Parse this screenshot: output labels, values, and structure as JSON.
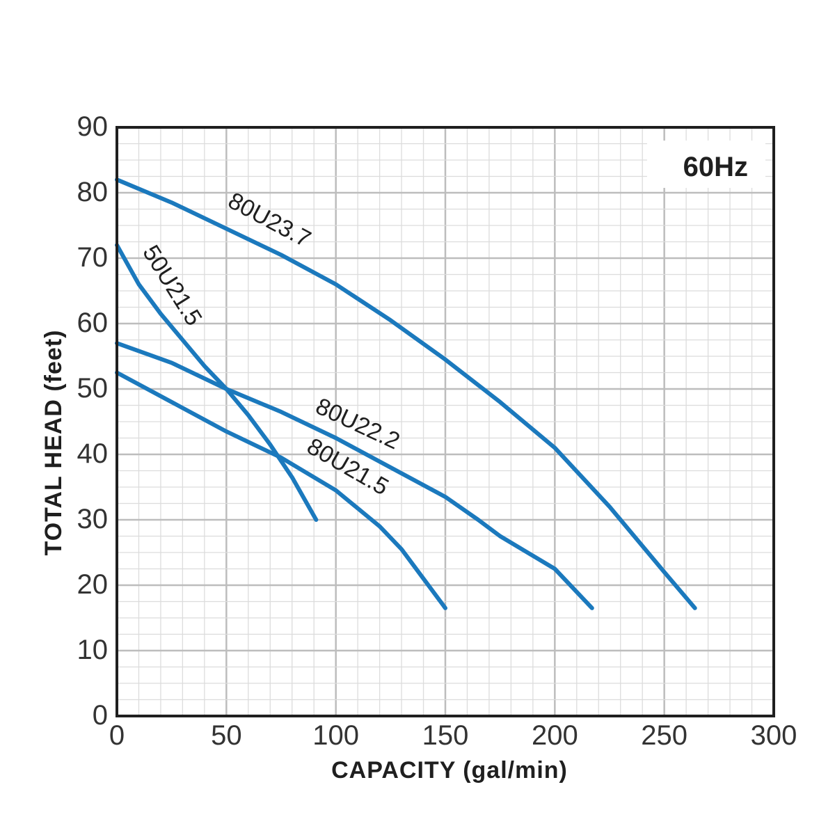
{
  "chart_data": {
    "type": "line",
    "frequency_label": "60Hz",
    "xlabel": "CAPACITY (gal/min)",
    "ylabel": "TOTAL HEAD (feet)",
    "xlim": [
      0,
      300
    ],
    "ylim": [
      0,
      90
    ],
    "x_ticks": [
      0,
      50,
      100,
      150,
      200,
      250,
      300
    ],
    "y_ticks": [
      0,
      10,
      20,
      30,
      40,
      50,
      60,
      70,
      80,
      90
    ],
    "grid": true,
    "line_color": "#1b79bd",
    "series": [
      {
        "name": "80U23.7",
        "x": [
          0,
          25,
          50,
          75,
          100,
          125,
          150,
          175,
          200,
          225,
          250,
          264
        ],
        "y": [
          82,
          78.5,
          74.5,
          70.5,
          66,
          60.5,
          54.5,
          48,
          41,
          32,
          22,
          16.5
        ]
      },
      {
        "name": "50U21.5",
        "x": [
          0,
          10,
          20,
          30,
          40,
          50,
          60,
          70,
          80,
          91
        ],
        "y": [
          72,
          66,
          61.5,
          57.5,
          53.5,
          50,
          46,
          41.5,
          36.5,
          30
        ]
      },
      {
        "name": "80U22.2",
        "x": [
          0,
          25,
          50,
          75,
          100,
          125,
          150,
          165,
          175,
          200,
          217
        ],
        "y": [
          57,
          54,
          50,
          46.5,
          42.5,
          38,
          33.5,
          30,
          27.5,
          22.5,
          16.5
        ]
      },
      {
        "name": "80U21.5",
        "x": [
          0,
          25,
          50,
          75,
          100,
          120,
          130,
          140,
          150
        ],
        "y": [
          52.5,
          48,
          43.5,
          39.5,
          34.5,
          29,
          25.5,
          21,
          16.5
        ]
      }
    ]
  }
}
